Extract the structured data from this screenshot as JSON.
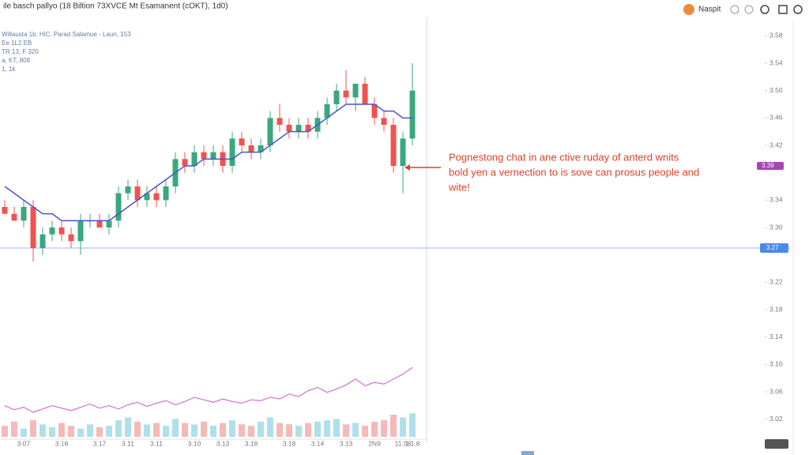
{
  "header": {
    "title": "ile basch pallyo (18 Biltion 73XVCE Mt Esamanent (cOKT), 1d0)",
    "button": "Naspit"
  },
  "legend": [
    "Willausta 1b. HiC. Parad Salamue - Laun, 153",
    "Ee 1L2 EB",
    "TR 13,  F 320",
    "a, KT, 808",
    "1, 1k"
  ],
  "annotation": [
    "Pognestong chat in ane ctive ruday of anterd wnits",
    "bold yen a vernection to is sove can prosus people and",
    "wite!"
  ],
  "chart_data": {
    "type": "candlestick",
    "categories": [
      null,
      null,
      "3.07",
      null,
      null,
      null,
      "3.18",
      null,
      null,
      null,
      "3.17",
      null,
      null,
      "3.11",
      null,
      null,
      "3.11",
      null,
      null,
      null,
      "3.10",
      null,
      null,
      "3.13",
      null,
      null,
      "3.18",
      null,
      null,
      null,
      "3.18",
      null,
      null,
      "3.14",
      null,
      null,
      "3.13",
      null,
      null,
      "2N9",
      null,
      null,
      "11.08",
      "1.1.8"
    ],
    "open": [
      3.33,
      3.32,
      3.31,
      3.33,
      3.27,
      3.29,
      3.3,
      3.29,
      3.28,
      3.31,
      3.31,
      3.3,
      3.31,
      3.35,
      3.36,
      3.34,
      3.35,
      3.34,
      3.36,
      3.4,
      3.39,
      3.41,
      3.4,
      3.41,
      3.39,
      3.43,
      3.42,
      3.41,
      3.42,
      3.46,
      3.45,
      3.44,
      3.45,
      3.44,
      3.46,
      3.48,
      3.5,
      3.49,
      3.51,
      3.48,
      3.46,
      3.45,
      3.39,
      3.43
    ],
    "high": [
      3.34,
      3.33,
      3.34,
      3.34,
      3.3,
      3.31,
      3.31,
      3.3,
      3.32,
      3.32,
      3.32,
      3.32,
      3.36,
      3.37,
      3.37,
      3.36,
      3.36,
      3.37,
      3.41,
      3.41,
      3.42,
      3.42,
      3.42,
      3.42,
      3.44,
      3.44,
      3.43,
      3.43,
      3.47,
      3.48,
      3.46,
      3.46,
      3.46,
      3.47,
      3.49,
      3.51,
      3.53,
      3.51,
      3.52,
      3.49,
      3.47,
      3.46,
      3.44,
      3.54
    ],
    "low": [
      3.32,
      3.31,
      3.3,
      3.25,
      3.26,
      3.28,
      3.28,
      3.27,
      3.26,
      3.3,
      3.3,
      3.29,
      3.3,
      3.34,
      3.33,
      3.33,
      3.33,
      3.33,
      3.35,
      3.38,
      3.38,
      3.39,
      3.39,
      3.38,
      3.38,
      3.41,
      3.4,
      3.4,
      3.41,
      3.44,
      3.43,
      3.43,
      3.43,
      3.43,
      3.45,
      3.47,
      3.48,
      3.47,
      3.48,
      3.45,
      3.44,
      3.38,
      3.35,
      3.42
    ],
    "close": [
      3.32,
      3.31,
      3.33,
      3.27,
      3.29,
      3.3,
      3.29,
      3.28,
      3.31,
      3.31,
      3.3,
      3.31,
      3.35,
      3.36,
      3.34,
      3.35,
      3.34,
      3.36,
      3.4,
      3.39,
      3.41,
      3.4,
      3.41,
      3.39,
      3.43,
      3.42,
      3.41,
      3.42,
      3.46,
      3.45,
      3.44,
      3.45,
      3.44,
      3.46,
      3.48,
      3.5,
      3.49,
      3.51,
      3.48,
      3.46,
      3.45,
      3.39,
      3.43,
      3.5
    ],
    "up_color": "#3aa77e",
    "down_color": "#ef5350",
    "ma": {
      "color": "#4b55c4",
      "values": [
        3.36,
        3.35,
        3.34,
        3.33,
        3.32,
        3.32,
        3.31,
        3.31,
        3.31,
        3.31,
        3.31,
        3.31,
        3.32,
        3.33,
        3.34,
        3.35,
        3.36,
        3.37,
        3.38,
        3.39,
        3.39,
        3.4,
        3.4,
        3.4,
        3.4,
        3.41,
        3.41,
        3.41,
        3.42,
        3.43,
        3.44,
        3.44,
        3.44,
        3.45,
        3.46,
        3.47,
        3.48,
        3.48,
        3.48,
        3.48,
        3.47,
        3.47,
        3.46,
        3.46
      ]
    },
    "oscillator": {
      "color": "#d77ad6",
      "ylim": [
        0,
        100
      ],
      "values": [
        30,
        25,
        28,
        22,
        26,
        30,
        27,
        24,
        28,
        32,
        27,
        30,
        26,
        31,
        34,
        29,
        33,
        36,
        31,
        35,
        40,
        37,
        34,
        38,
        35,
        33,
        37,
        36,
        40,
        38,
        44,
        41,
        48,
        52,
        46,
        50,
        55,
        62,
        54,
        58,
        56,
        62,
        68,
        76
      ]
    },
    "volume": {
      "up_color": "#aee0ec",
      "down_color": "#f6b9b9",
      "ylim": [
        0,
        100
      ],
      "values": [
        40,
        55,
        30,
        60,
        45,
        35,
        50,
        40,
        30,
        45,
        35,
        40,
        60,
        70,
        55,
        45,
        50,
        40,
        65,
        50,
        45,
        55,
        40,
        50,
        60,
        45,
        40,
        55,
        70,
        50,
        45,
        40,
        50,
        55,
        60,
        65,
        45,
        50,
        40,
        55,
        60,
        80,
        70,
        85
      ]
    },
    "ylim": [
      3.0,
      3.63
    ],
    "yticks": [
      3.58,
      3.54,
      {
        "value": 3.5,
        "label": "3.50"
      },
      3.46,
      3.42,
      3.34,
      {
        "value": 3.3,
        "label": "3.30"
      },
      3.22,
      3.18,
      3.14,
      {
        "value": 3.1,
        "label": "3.10"
      },
      3.06,
      3.02
    ],
    "crosshair_price": 3.27,
    "marker_price": 3.39
  }
}
